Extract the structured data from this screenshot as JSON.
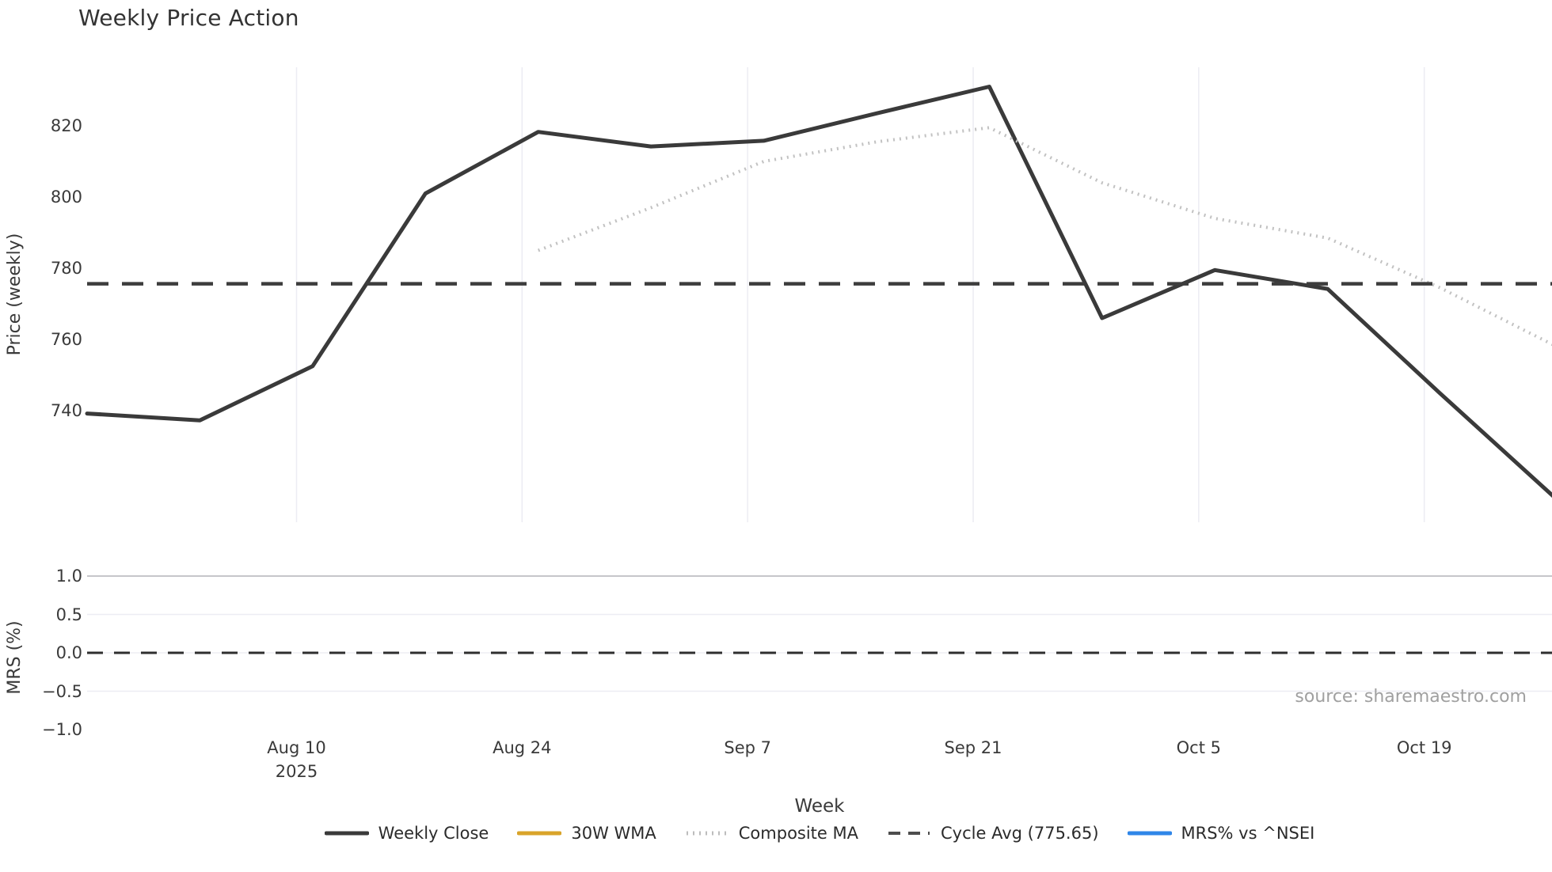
{
  "title": "Weekly Price Action",
  "source": "source: sharemaestro.com",
  "colors": {
    "weekly_close": "#3a3a3a",
    "wma_30w": "#d9a42a",
    "composite_ma": "#c2c2c2",
    "cycle_avg": "#3d3d3d",
    "mrs_line": "#2f86e8",
    "grid_light": "#ededf3",
    "grid_strong": "#c6c6ca",
    "zero_dash": "#2f2f2f",
    "text": "#3a3a3a",
    "muted_text": "#a0a0a0"
  },
  "chart_data": [
    {
      "type": "line",
      "panel": "price",
      "title": "Weekly Price Action",
      "xlabel": "Week",
      "ylabel": "Price (weekly)",
      "ylim": [
        708.5,
        836.5
      ],
      "grid": "vertical",
      "x_unit": "days since first weekly point (Mon 2025-07-28); 7 days = 1 week",
      "yticks": [
        {
          "value": 740,
          "label": "740"
        },
        {
          "value": 760,
          "label": "760"
        },
        {
          "value": 780,
          "label": "780"
        },
        {
          "value": 800,
          "label": "800"
        },
        {
          "value": 820,
          "label": "820"
        }
      ],
      "xticks": [
        {
          "day": 13,
          "label": "Aug 10",
          "sublabel": "2025"
        },
        {
          "day": 27,
          "label": "Aug 24",
          "sublabel": ""
        },
        {
          "day": 41,
          "label": "Sep 7",
          "sublabel": ""
        },
        {
          "day": 55,
          "label": "Sep 21",
          "sublabel": ""
        },
        {
          "day": 69,
          "label": "Oct 5",
          "sublabel": ""
        },
        {
          "day": 83,
          "label": "Oct 19",
          "sublabel": ""
        }
      ],
      "series": [
        {
          "name": "Weekly Close",
          "style": "solid",
          "color": "#3a3a3a",
          "width": 5,
          "x_days": [
            0,
            7,
            14,
            21,
            28,
            35,
            42,
            49,
            56,
            63,
            70,
            77,
            84,
            91
          ],
          "values": [
            739.2,
            737.3,
            752.5,
            801.0,
            818.3,
            814.2,
            815.8,
            823.5,
            831.0,
            766.0,
            779.5,
            774.2,
            744.8,
            716.0
          ]
        },
        {
          "name": "30W WMA",
          "style": "solid",
          "color": "#d9a42a",
          "width": 5,
          "x_days": [],
          "values": []
        },
        {
          "name": "Composite MA",
          "style": "dotted",
          "color": "#c2c2c2",
          "width": 4,
          "x_days": [
            28,
            35,
            42,
            49,
            56,
            63,
            70,
            77,
            84,
            91
          ],
          "values": [
            785.0,
            797.0,
            810.0,
            815.5,
            819.5,
            804.0,
            794.0,
            788.5,
            774.5,
            758.5
          ]
        },
        {
          "name": "Cycle Avg",
          "style": "dashed",
          "color": "#3d3d3d",
          "width": 4.5,
          "constant": 775.65
        }
      ]
    },
    {
      "type": "line",
      "panel": "mrs",
      "xlabel": "Week",
      "ylabel": "MRS (%)",
      "ylim": [
        -1.15,
        1.0
      ],
      "grid": "horizontal",
      "yticks": [
        {
          "value": 1.0,
          "label": "1.0"
        },
        {
          "value": 0.5,
          "label": "0.5"
        },
        {
          "value": 0.0,
          "label": "0.0"
        },
        {
          "value": -0.5,
          "label": "−0.5"
        },
        {
          "value": -1.0,
          "label": "−1.0"
        }
      ],
      "zero_line": {
        "value": 0.0,
        "style": "dashed",
        "color": "#2f2f2f",
        "width": 3
      },
      "series": [
        {
          "name": "MRS% vs ^NSEI",
          "style": "solid",
          "color": "#2f86e8",
          "width": 4,
          "x_days": [],
          "values": []
        }
      ]
    }
  ],
  "legend": {
    "items": [
      {
        "label": "Weekly Close",
        "style": "solid",
        "color": "#3a3a3a"
      },
      {
        "label": "30W WMA",
        "style": "solid",
        "color": "#d9a42a"
      },
      {
        "label": "Composite MA",
        "style": "dotted",
        "color": "#bdbdbd"
      },
      {
        "label": "Cycle Avg (775.65)",
        "style": "dashed",
        "color": "#4d4d4d"
      },
      {
        "label": "MRS% vs ^NSEI",
        "style": "solid",
        "color": "#2f86e8"
      }
    ]
  }
}
